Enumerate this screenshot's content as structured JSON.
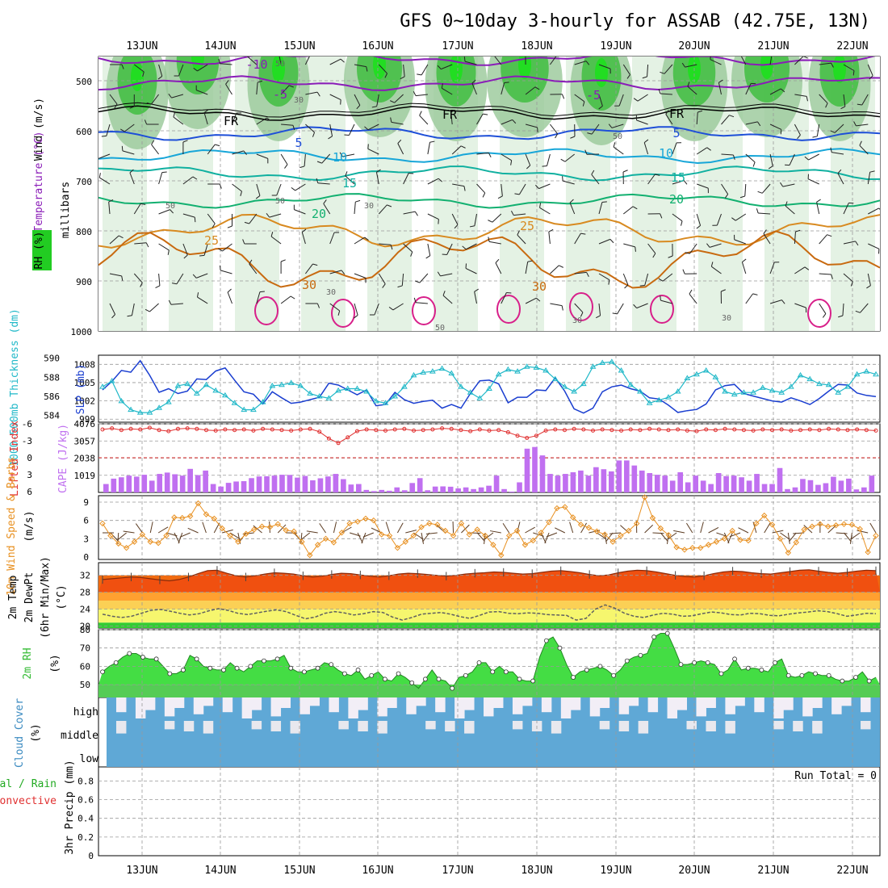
{
  "title": "GFS 0~10day 3-hourly for ASSAB (42.75E, 13N)",
  "dates": [
    "13JUN",
    "14JUN",
    "15JUN",
    "16JUN",
    "17JUN",
    "18JUN",
    "19JUN",
    "20JUN",
    "21JUN",
    "22JUN"
  ],
  "colors": {
    "rh_light": "#d8ecd8",
    "rh_mid": "#99c899",
    "rh_dark": "#33bb33",
    "rh_bright": "#22dd22",
    "purple": "#8a1cb8",
    "blue": "#1e4fd8",
    "cyan": "#17a6d8",
    "teal": "#10b0a0",
    "green": "#12b070",
    "orange": "#d88a20",
    "dark_orange": "#c86a10",
    "magenta": "#d8208a",
    "slp": "#1a3ed0",
    "thick": "#20b8c8",
    "cape": "#c070f0",
    "li": "#e03030",
    "wind": "#e89020",
    "temp_fill": "#f05010",
    "dew": "#606060",
    "cloud": "#5fa8d6",
    "cloud_clear": "#f2eef6"
  },
  "chart_data": [
    {
      "id": "upper-air",
      "type": "area",
      "left_labels": [
        "Wind (m/s)",
        "Temperature (°C)",
        "RH (%)"
      ],
      "ylabel": "millibars",
      "yticks": [
        500,
        600,
        700,
        800,
        900,
        1000
      ],
      "ylim": [
        1000,
        450
      ],
      "isotherm_labels": [
        "-10",
        "-5",
        "FR",
        "5",
        "10",
        "15",
        "20",
        "25",
        "30"
      ],
      "isotherms": [
        {
          "label": "-10",
          "level": 455
        },
        {
          "label": "-5",
          "level": 505
        },
        {
          "label": "FR",
          "level": 565
        },
        {
          "label": "5",
          "level": 605
        },
        {
          "label": "10",
          "level": 650
        },
        {
          "label": "15",
          "level": 685
        },
        {
          "label": "20",
          "level": 740
        },
        {
          "label": "25",
          "level": 800
        },
        {
          "label": "30",
          "level": 860
        }
      ],
      "rh_contour_labels": [
        "50",
        "30",
        "50",
        "30",
        "30",
        "50",
        "30",
        "50",
        "30",
        "30",
        "30"
      ]
    },
    {
      "id": "slp-thickness",
      "type": "line",
      "left_labels": [
        "1000-500mb Thickness (dm)",
        "SLP (mb)"
      ],
      "yticks_left": [
        584,
        586,
        588,
        590
      ],
      "yticks_right": [
        999,
        1002,
        1005,
        1008
      ],
      "series": [
        {
          "name": "SLP (mb)",
          "values": [
            1003.8,
            1005.2,
            1007.0,
            1006.7,
            1008.6,
            1006.2,
            1003.4,
            1004.0,
            1003.2,
            1003.6,
            1005.6,
            1005.5,
            1006.9,
            1007.4,
            1005.4,
            1003.5,
            1003.1,
            1001.5,
            1003.5,
            1002.5,
            1001.6,
            1001.8,
            1002.2,
            1002.6,
            1004.9,
            1004.6,
            1003.8,
            1003.0,
            1003.8,
            1001.2,
            1001.4,
            1003.4,
            1002.2,
            1001.6,
            1001.9,
            1002.1,
            1000.8,
            1001.4,
            1000.8,
            1003.2,
            1005.3,
            1005.4,
            1004.8,
            1001.7,
            1002.6,
            1002.6,
            1003.8,
            1003.7,
            1005.8,
            1003.6,
            1000.7,
            1000.0,
            1000.8,
            1003.5,
            1004.3,
            1004.6,
            1004.0,
            1003.6,
            1002.5,
            1002.3,
            1001.3,
            1000.1,
            1000.4,
            1000.6,
            1001.5,
            1003.8,
            1004.5,
            1004.7,
            1003.2,
            1002.8,
            1002.4,
            1002.0,
            1001.8,
            1002.5,
            1002.0,
            1001.4,
            1002.4,
            1003.6,
            1004.7,
            1004.6,
            1003.3,
            1002.9,
            1002.7
          ]
        },
        {
          "name": "1000-500mb Thickness (dm)",
          "values": [
            587.0,
            587.6,
            585.5,
            584.6,
            584.3,
            584.3,
            584.8,
            585.4,
            587.1,
            587.3,
            586.3,
            587.2,
            586.6,
            586.1,
            585.3,
            584.6,
            584.6,
            585.4,
            587.1,
            587.2,
            587.4,
            587.1,
            586.3,
            586.0,
            585.8,
            586.6,
            586.8,
            586.8,
            586.5,
            585.5,
            585.3,
            586.0,
            587.0,
            588.2,
            588.5,
            588.6,
            588.9,
            588.4,
            587.0,
            586.4,
            585.8,
            586.8,
            588.3,
            588.8,
            588.6,
            589.1,
            589.0,
            588.7,
            587.8,
            587.0,
            586.5,
            587.3,
            589.1,
            589.5,
            589.6,
            588.7,
            587.2,
            586.5,
            585.3,
            585.6,
            585.9,
            586.5,
            587.9,
            588.3,
            588.7,
            588.0,
            586.5,
            586.2,
            586.4,
            586.4,
            586.9,
            586.6,
            586.4,
            587.0,
            588.2,
            587.8,
            587.3,
            587.2,
            586.4,
            587.0,
            588.3,
            588.6,
            588.3
          ]
        }
      ]
    },
    {
      "id": "cape-li",
      "type": "bar",
      "left_labels": [
        "Lifted Index",
        "CAPE (J/kg)"
      ],
      "yticks_left": [
        6,
        3,
        0,
        -3,
        -6
      ],
      "yticks_right": [
        1019,
        2038,
        3057,
        4076
      ],
      "series": [
        {
          "name": "CAPE (J/kg)",
          "values": [
            500,
            820,
            900,
            1000,
            940,
            1050,
            700,
            1100,
            1180,
            1080,
            1000,
            1400,
            1030,
            1300,
            500,
            350,
            570,
            650,
            670,
            850,
            950,
            960,
            1000,
            1050,
            1040,
            880,
            980,
            720,
            840,
            950,
            1100,
            790,
            470,
            500,
            150,
            80,
            150,
            100,
            300,
            130,
            560,
            850,
            130,
            350,
            360,
            340,
            240,
            300,
            200,
            300,
            400,
            1000,
            200,
            50,
            600,
            2600,
            2700,
            2200,
            1100,
            1000,
            1100,
            1200,
            1300,
            1000,
            1500,
            1380,
            1250,
            1900,
            1900,
            1600,
            1300,
            1150,
            1050,
            1000,
            700,
            1200,
            600,
            1000,
            700,
            500,
            1150,
            970,
            1000,
            900,
            700,
            1100,
            500,
            500,
            1450,
            200,
            300,
            800,
            730,
            450,
            550,
            930,
            700,
            820,
            180,
            300,
            1000
          ]
        },
        {
          "name": "Lifted Index",
          "values": [
            -5.0,
            -5.2,
            -4.9,
            -5.1,
            -5.0,
            -5.3,
            -4.9,
            -4.7,
            -5.1,
            -5.2,
            -5.1,
            -4.9,
            -4.8,
            -5.0,
            -4.9,
            -5.0,
            -4.8,
            -5.1,
            -5.0,
            -4.9,
            -4.8,
            -5.0,
            -5.1,
            -4.6,
            -3.4,
            -2.6,
            -3.6,
            -4.7,
            -5.0,
            -4.9,
            -4.8,
            -5.0,
            -5.1,
            -4.8,
            -4.9,
            -5.0,
            -5.2,
            -5.1,
            -4.9,
            -4.7,
            -5.0,
            -4.8,
            -4.9,
            -4.5,
            -3.9,
            -3.5,
            -3.9,
            -4.8,
            -5.0,
            -4.9,
            -5.1,
            -5.0,
            -4.8,
            -5.0,
            -4.9,
            -4.8,
            -5.0,
            -4.9,
            -5.1,
            -5.0,
            -4.9,
            -5.0,
            -4.8,
            -4.7,
            -5.0,
            -4.9,
            -5.1,
            -5.0,
            -4.9,
            -4.8,
            -5.0,
            -4.9,
            -5.0,
            -4.8,
            -4.9,
            -5.0,
            -4.9,
            -5.1,
            -5.0,
            -4.9,
            -5.0,
            -4.9,
            -4.8
          ]
        }
      ]
    },
    {
      "id": "wind10m",
      "type": "line",
      "left_labels": [
        "10m Wind Speed & Barbs",
        "(m/s)"
      ],
      "yticks": [
        0,
        3,
        6,
        9
      ],
      "ylim": [
        0,
        10
      ],
      "series": [
        {
          "name": "10m Wind Speed",
          "values": [
            5.5,
            3.5,
            2.2,
            1.5,
            2.5,
            3.7,
            2.5,
            2.3,
            3.5,
            6.5,
            6.4,
            6.7,
            8.8,
            7.0,
            6.3,
            4.7,
            3.5,
            2.5,
            3.8,
            4.5,
            5.0,
            4.9,
            5.4,
            4.4,
            4.2,
            2.5,
            0.3,
            2.0,
            3.0,
            2.4,
            4.0,
            5.5,
            5.8,
            6.3,
            6.0,
            3.7,
            3.5,
            1.5,
            2.5,
            3.5,
            4.9,
            5.5,
            5.3,
            4.3,
            3.5,
            5.5,
            3.7,
            4.5,
            3.5,
            2.0,
            0.3,
            3.5,
            4.3,
            2.0,
            2.7,
            4.0,
            5.7,
            8.0,
            8.2,
            6.5,
            5.3,
            4.8,
            4.2,
            3.7,
            2.5,
            3.5,
            4.3,
            5.5,
            9.8,
            6.4,
            4.7,
            3.6,
            1.6,
            1.2,
            1.5,
            1.5,
            2.0,
            2.5,
            3.0,
            4.3,
            2.8,
            2.7,
            5.5,
            6.8,
            5.3,
            3.0,
            0.7,
            2.4,
            4.5,
            5.0,
            5.4,
            5.0,
            5.2,
            5.4,
            5.3,
            4.6,
            0.8,
            3.5
          ]
        }
      ]
    },
    {
      "id": "temp2m",
      "type": "area",
      "left_labels": [
        "2m Temp",
        "2m DewPt",
        "(6hr Min/Max)",
        "(°C)"
      ],
      "yticks": [
        20,
        24,
        28,
        32
      ],
      "ylim": [
        19.5,
        35.5
      ],
      "series": [
        {
          "name": "2m Temp",
          "values": [
            31.0,
            31.2,
            31.4,
            31.6,
            31.5,
            31.2,
            30.9,
            30.7,
            31.0,
            31.6,
            32.4,
            33.1,
            33.2,
            32.5,
            31.9,
            31.6,
            31.9,
            32.3,
            32.6,
            32.5,
            32.3,
            31.9,
            31.6,
            31.8,
            32.2,
            32.5,
            32.4,
            32.1,
            31.8,
            31.6,
            31.9,
            32.3,
            32.5,
            32.4,
            32.2,
            32.0,
            31.8,
            32.0,
            32.3,
            32.5,
            32.6,
            32.8,
            32.7,
            32.5,
            32.3,
            32.4,
            32.7,
            33.0,
            33.1,
            32.9,
            32.6,
            32.2,
            31.9,
            32.1,
            32.6,
            33.0,
            33.2,
            33.1,
            32.8,
            32.4,
            32.0,
            31.7,
            31.6,
            31.9,
            32.4,
            32.8,
            33.0,
            32.9,
            32.6,
            32.4,
            32.3,
            32.6,
            32.9,
            33.2,
            33.3,
            33.0,
            32.7,
            32.5,
            32.7,
            33.0,
            33.2,
            33.1
          ]
        },
        {
          "name": "2m DewPt",
          "values": [
            22.8,
            22.3,
            22.0,
            22.3,
            23.0,
            23.7,
            23.9,
            23.5,
            23.0,
            22.6,
            22.9,
            23.6,
            24.1,
            23.7,
            23.0,
            22.7,
            23.1,
            23.5,
            23.8,
            23.4,
            22.5,
            21.7,
            22.1,
            23.0,
            23.4,
            23.1,
            22.6,
            22.9,
            23.4,
            23.2,
            22.1,
            21.4,
            22.0,
            22.8,
            23.0,
            23.2,
            22.8,
            22.2,
            21.8,
            22.5,
            23.3,
            23.4,
            23.0,
            22.9,
            23.1,
            23.0,
            22.7,
            22.6,
            22.5,
            21.4,
            21.8,
            24.0,
            25.0,
            24.2,
            23.0,
            22.3,
            22.0,
            22.6,
            23.0,
            22.8,
            22.3,
            22.4,
            22.9,
            23.3,
            23.1,
            22.7,
            22.6,
            23.0,
            22.9,
            22.5,
            22.4,
            22.8,
            23.1,
            23.3,
            23.6,
            23.4,
            22.9,
            22.3,
            22.6,
            23.0,
            22.9
          ]
        }
      ]
    },
    {
      "id": "rh2m",
      "type": "area",
      "left_labels": [
        "2m RH",
        "(%)"
      ],
      "yticks": [
        50,
        60,
        70,
        80
      ],
      "ylim": [
        43,
        80
      ],
      "series": [
        {
          "name": "2m RH",
          "values": [
            57,
            60,
            62,
            65,
            67,
            67,
            65,
            64,
            64,
            60,
            56,
            56,
            58,
            66,
            64,
            60,
            59,
            58,
            58,
            62,
            59,
            57,
            60,
            63,
            63,
            63,
            64,
            66,
            59,
            57,
            57,
            58,
            59,
            62,
            61,
            58,
            56,
            55,
            58,
            53,
            55,
            57,
            53,
            52,
            56,
            54,
            51,
            48,
            53,
            58,
            53,
            52,
            48,
            54,
            55,
            57,
            62,
            62,
            57,
            60,
            57,
            57,
            53,
            52,
            52,
            65,
            74,
            76,
            70,
            61,
            54,
            57,
            58,
            59,
            60,
            58,
            55,
            58,
            63,
            65,
            66,
            67,
            76,
            78,
            78,
            70,
            61,
            61,
            62,
            63,
            62,
            61,
            56,
            58,
            64,
            58,
            59,
            59,
            58,
            57,
            62,
            64,
            55,
            54,
            55,
            57,
            56,
            55,
            55,
            53,
            52,
            52,
            54,
            57,
            52,
            54
          ]
        }
      ]
    },
    {
      "id": "cloud",
      "type": "heatmap",
      "left_labels": [
        "Cloud Cover",
        "(%)"
      ],
      "rows": [
        "high",
        "middle",
        "low"
      ]
    },
    {
      "id": "precip",
      "type": "bar",
      "left_labels": [
        "Total / Rain",
        "Convective",
        "3hr Precip (mm)"
      ],
      "yticks": [
        "0",
        "0.2",
        "0.4",
        "0.6",
        "0.8"
      ],
      "ylim": [
        0,
        0.95
      ],
      "annotation": "Run Total = 0",
      "values": []
    }
  ]
}
